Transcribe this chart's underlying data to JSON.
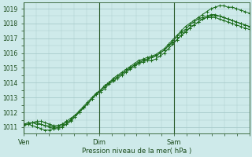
{
  "bg_color": "#ceeaea",
  "grid_color": "#a8cccc",
  "line_color": "#1a6b1a",
  "xlabel": "Pression niveau de la mer( hPa )",
  "xlabel_color": "#1a4a1a",
  "tick_color": "#1a4a1a",
  "axis_color": "#2a5a2a",
  "xtick_labels": [
    "Ven",
    "Dim",
    "Sam"
  ],
  "xtick_positions": [
    0,
    36,
    72
  ],
  "xlim": [
    0,
    108
  ],
  "ylim": [
    1010.6,
    1019.4
  ],
  "yticks": [
    1011,
    1012,
    1013,
    1014,
    1015,
    1016,
    1017,
    1018,
    1019
  ],
  "series": [
    [
      1011.2,
      1011.3,
      1011.3,
      1011.2,
      1011.2,
      1011.1,
      1011.1,
      1011.0,
      1011.1,
      1011.2,
      1011.4,
      1011.6,
      1011.8,
      1012.0,
      1012.3,
      1012.6,
      1012.9,
      1013.2,
      1013.5,
      1013.8,
      1014.0,
      1014.3,
      1014.5,
      1014.7,
      1014.9,
      1015.1,
      1015.3,
      1015.5,
      1015.6,
      1015.7,
      1015.8,
      1015.9,
      1016.1,
      1016.3,
      1016.6,
      1016.9,
      1017.2,
      1017.5,
      1017.8,
      1018.0,
      1018.2,
      1018.4,
      1018.6,
      1018.8,
      1019.0,
      1019.1,
      1019.2,
      1019.2,
      1019.1,
      1019.1,
      1019.0,
      1018.9,
      1018.8,
      1018.7
    ],
    [
      1011.2,
      1011.2,
      1011.1,
      1011.0,
      1010.9,
      1010.8,
      1010.8,
      1010.9,
      1011.0,
      1011.1,
      1011.2,
      1011.4,
      1011.7,
      1012.0,
      1012.3,
      1012.6,
      1012.9,
      1013.2,
      1013.5,
      1013.7,
      1014.0,
      1014.2,
      1014.4,
      1014.6,
      1014.8,
      1015.0,
      1015.2,
      1015.3,
      1015.4,
      1015.5,
      1015.5,
      1015.6,
      1015.8,
      1016.0,
      1016.3,
      1016.6,
      1016.9,
      1017.2,
      1017.5,
      1017.7,
      1017.9,
      1018.1,
      1018.3,
      1018.4,
      1018.5,
      1018.5,
      1018.5,
      1018.4,
      1018.3,
      1018.2,
      1018.1,
      1018.0,
      1017.9,
      1017.8
    ],
    [
      1011.2,
      1011.2,
      1011.3,
      1011.3,
      1011.2,
      1011.1,
      1011.0,
      1010.9,
      1010.9,
      1011.0,
      1011.2,
      1011.4,
      1011.7,
      1012.0,
      1012.3,
      1012.6,
      1012.9,
      1013.2,
      1013.4,
      1013.6,
      1013.9,
      1014.1,
      1014.3,
      1014.5,
      1014.7,
      1014.9,
      1015.1,
      1015.3,
      1015.5,
      1015.6,
      1015.7,
      1015.8,
      1016.0,
      1016.2,
      1016.5,
      1016.7,
      1016.9,
      1017.2,
      1017.4,
      1017.7,
      1017.9,
      1018.1,
      1018.3,
      1018.4,
      1018.4,
      1018.4,
      1018.3,
      1018.2,
      1018.1,
      1018.0,
      1017.9,
      1017.8,
      1017.7,
      1017.6
    ],
    [
      1011.1,
      1011.2,
      1011.3,
      1011.4,
      1011.4,
      1011.3,
      1011.2,
      1011.1,
      1011.1,
      1011.2,
      1011.3,
      1011.5,
      1011.8,
      1012.1,
      1012.4,
      1012.7,
      1013.0,
      1013.3,
      1013.5,
      1013.8,
      1014.0,
      1014.2,
      1014.4,
      1014.6,
      1014.8,
      1015.0,
      1015.2,
      1015.4,
      1015.5,
      1015.6,
      1015.7,
      1015.8,
      1016.0,
      1016.2,
      1016.5,
      1016.8,
      1017.1,
      1017.4,
      1017.6,
      1017.9,
      1018.1,
      1018.3,
      1018.4,
      1018.5,
      1018.6,
      1018.6,
      1018.5,
      1018.4,
      1018.3,
      1018.2,
      1018.1,
      1018.0,
      1017.9,
      1017.8
    ]
  ]
}
